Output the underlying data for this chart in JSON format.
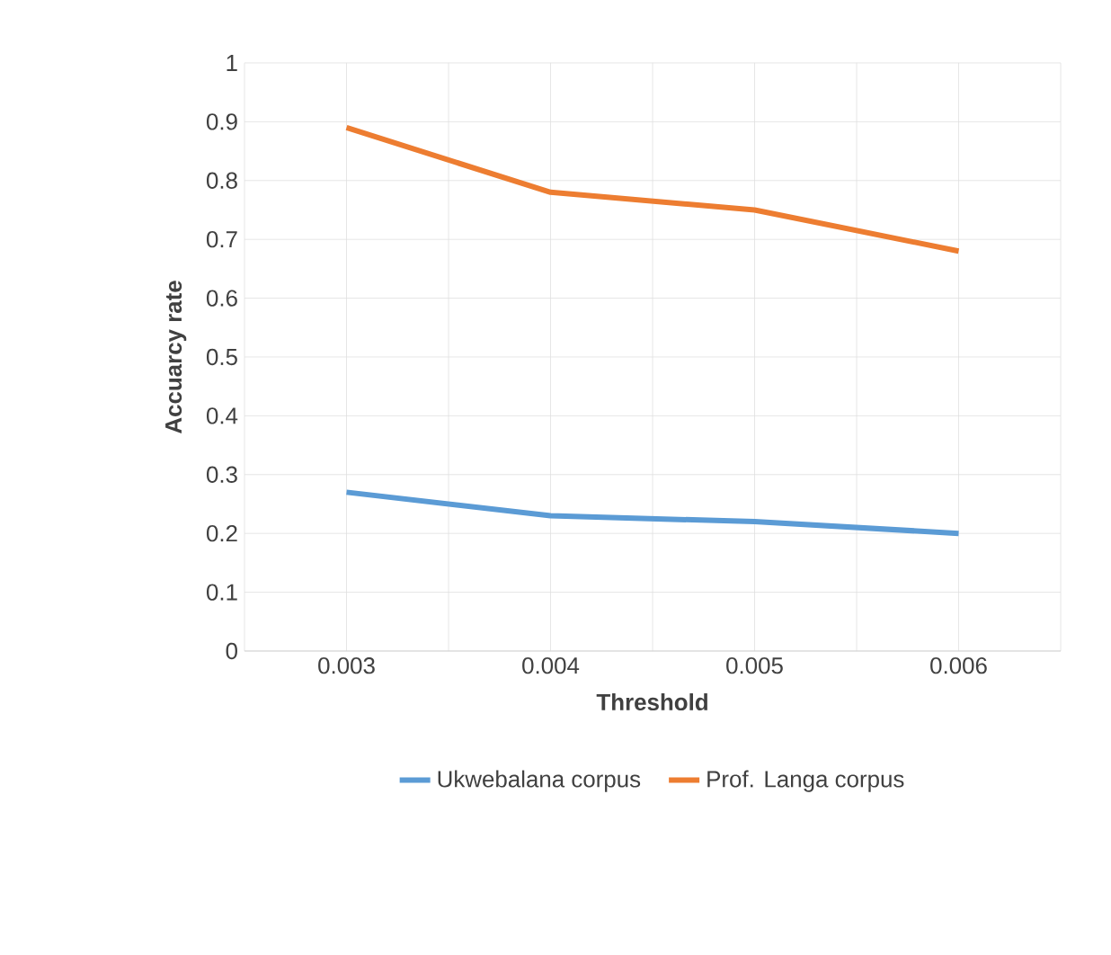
{
  "chart_data": {
    "type": "line",
    "xlabel": "Threshold",
    "ylabel": "Accuarcy rate",
    "categories": [
      "0.003",
      "0.004",
      "0.005",
      "0.006"
    ],
    "series": [
      {
        "name": "Ukwebalana corpus",
        "color": "#5b9bd5",
        "values": [
          0.27,
          0.23,
          0.22,
          0.2
        ]
      },
      {
        "name": "Prof. Langa corpus",
        "color": "#ed7d31",
        "values": [
          0.89,
          0.78,
          0.75,
          0.68
        ]
      }
    ],
    "ylim": [
      0,
      1
    ],
    "yticks": [
      0,
      0.1,
      0.2,
      0.3,
      0.4,
      0.5,
      0.6,
      0.7,
      0.8,
      0.9,
      1
    ],
    "grid": true,
    "legend": "bottom",
    "marker": "none",
    "line_style": "solid"
  }
}
